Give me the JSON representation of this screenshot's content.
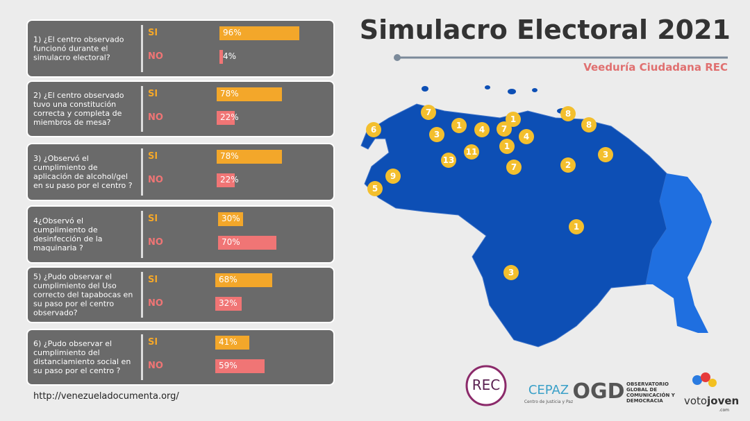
{
  "title": "Simulacro Electoral 2021",
  "subtitle": "Veeduría Ciudadana REC",
  "url": "http://venezueladocumenta.org/",
  "chart_data": [
    {
      "type": "bar",
      "title": "1) ¿El centro observado funcionó durante el simulacro electoral?",
      "categories": [
        "SI",
        "NO"
      ],
      "values": [
        96,
        4
      ],
      "value_labels": [
        "96%",
        "4%"
      ],
      "colors": [
        "#f3a72a",
        "#f07575"
      ],
      "xlim": [
        0,
        100
      ]
    },
    {
      "type": "bar",
      "title": "2) ¿El centro observado tuvo una constitución correcta y completa de miembros de mesa?",
      "categories": [
        "SI",
        "NO"
      ],
      "values": [
        78,
        22
      ],
      "value_labels": [
        "78%",
        "22%"
      ],
      "colors": [
        "#f3a72a",
        "#f07575"
      ],
      "xlim": [
        0,
        100
      ]
    },
    {
      "type": "bar",
      "title": "3) ¿Observó el cumplimiento de aplicación de alcohol/gel en su paso por el centro ?",
      "categories": [
        "SI",
        "NO"
      ],
      "values": [
        78,
        22
      ],
      "value_labels": [
        "78%",
        "22%"
      ],
      "colors": [
        "#f3a72a",
        "#f07575"
      ],
      "xlim": [
        0,
        100
      ]
    },
    {
      "type": "bar",
      "title": "4¿Observó el cumplimiento de desinfección de la maquinaria ?",
      "categories": [
        "SI",
        "NO"
      ],
      "values": [
        30,
        70
      ],
      "value_labels": [
        "30%",
        "70%"
      ],
      "colors": [
        "#f3a72a",
        "#f07575"
      ],
      "xlim": [
        0,
        100
      ]
    },
    {
      "type": "bar",
      "title": "5) ¿Pudo observar el cumplimiento del Uso correcto del tapabocas en su paso por el centro observado?",
      "categories": [
        "SI",
        "NO"
      ],
      "values": [
        68,
        32
      ],
      "value_labels": [
        "68%",
        "32%"
      ],
      "colors": [
        "#f3a72a",
        "#f07575"
      ],
      "xlim": [
        0,
        100
      ]
    },
    {
      "type": "bar",
      "title": "6) ¿Pudo observar el cumplimiento del distanciamiento social en su paso por el centro ?",
      "categories": [
        "SI",
        "NO"
      ],
      "values": [
        41,
        59
      ],
      "value_labels": [
        "41%",
        "59%"
      ],
      "colors": [
        "#f3a72a",
        "#f07575"
      ],
      "xlim": [
        0,
        100
      ]
    }
  ],
  "map": {
    "markers": [
      "7",
      "6",
      "3",
      "1",
      "4",
      "7",
      "1",
      "4",
      "1",
      "8",
      "8",
      "3",
      "11",
      "13",
      "7",
      "2",
      "9",
      "5",
      "1",
      "3"
    ]
  },
  "logos": {
    "rec": "REC",
    "cepaz": "CEPAZ",
    "cepaz_sub": "Centro de Justicia y Paz",
    "ogd": "OGD",
    "ogd_text": "OBSERVATORIO GLOBAL DE COMUNICACIÓN Y DEMOCRACIA",
    "voto1": "voto",
    "voto2": "joven",
    "voto3": ".com"
  }
}
